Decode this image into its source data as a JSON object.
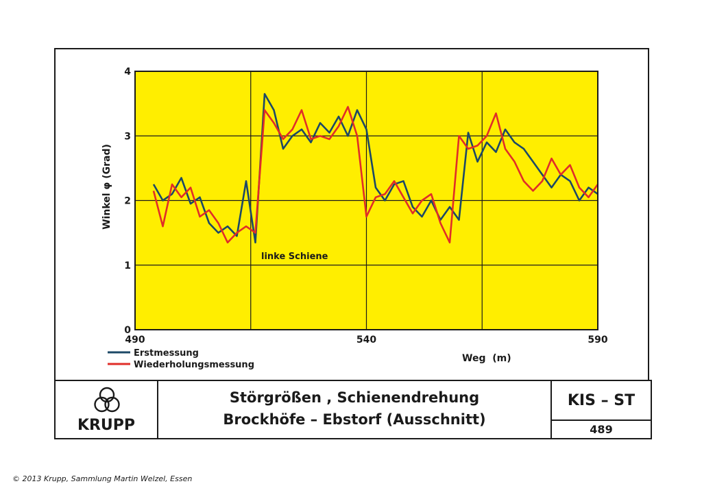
{
  "chart_data": {
    "type": "line",
    "title": "",
    "xlabel": "Weg  (m)",
    "ylabel": "Winkel φ (Grad)",
    "xlim": [
      490,
      590
    ],
    "ylim": [
      0,
      4
    ],
    "xticks": [
      490,
      540,
      590
    ],
    "yticks": [
      0,
      1,
      2,
      3,
      4
    ],
    "grid": true,
    "legend_position": "bottom-left",
    "background_color": "#ffee00",
    "annotation": "linke  Schiene",
    "x": [
      494,
      496,
      498,
      500,
      502,
      504,
      506,
      508,
      510,
      512,
      514,
      516,
      518,
      520,
      522,
      524,
      526,
      528,
      530,
      532,
      534,
      536,
      538,
      540,
      542,
      544,
      546,
      548,
      550,
      552,
      554,
      556,
      558,
      560,
      562,
      564,
      566,
      568,
      570,
      572,
      574,
      576,
      578,
      580,
      582,
      584,
      586,
      588,
      590
    ],
    "series": [
      {
        "name": "Erstmessung",
        "color": "#1c4866",
        "values": [
          2.25,
          2.0,
          2.1,
          2.35,
          1.95,
          2.05,
          1.65,
          1.5,
          1.6,
          1.45,
          2.3,
          1.35,
          3.65,
          3.4,
          2.8,
          3.0,
          3.1,
          2.9,
          3.2,
          3.05,
          3.3,
          3.0,
          3.4,
          3.1,
          2.2,
          2.0,
          2.25,
          2.3,
          1.9,
          1.75,
          2.0,
          1.7,
          1.9,
          1.7,
          3.05,
          2.6,
          2.9,
          2.75,
          3.1,
          2.9,
          2.8,
          2.6,
          2.4,
          2.2,
          2.4,
          2.3,
          2.0,
          2.2,
          2.1
        ]
      },
      {
        "name": "Wiederholungsmessung",
        "color": "#e02d28",
        "values": [
          2.15,
          1.6,
          2.25,
          2.05,
          2.2,
          1.75,
          1.85,
          1.65,
          1.35,
          1.5,
          1.6,
          1.5,
          3.4,
          3.2,
          2.95,
          3.1,
          3.4,
          2.95,
          3.0,
          2.95,
          3.15,
          3.45,
          3.0,
          1.75,
          2.05,
          2.1,
          2.3,
          2.05,
          1.8,
          2.0,
          2.1,
          1.65,
          1.35,
          3.0,
          2.8,
          2.85,
          3.0,
          3.35,
          2.8,
          2.6,
          2.3,
          2.15,
          2.3,
          2.65,
          2.4,
          2.55,
          2.2,
          2.05,
          2.25
        ]
      }
    ]
  },
  "title_block": {
    "logo_text": "KRUPP",
    "title_line1": "Störgrößen , Schienendrehung",
    "title_line2": "Brockhöfe – Ebstorf  (Ausschnitt)",
    "code": "KIS – ST",
    "number": "489"
  },
  "copyright": "© 2013 Krupp, Sammlung Martin Welzel, Essen"
}
